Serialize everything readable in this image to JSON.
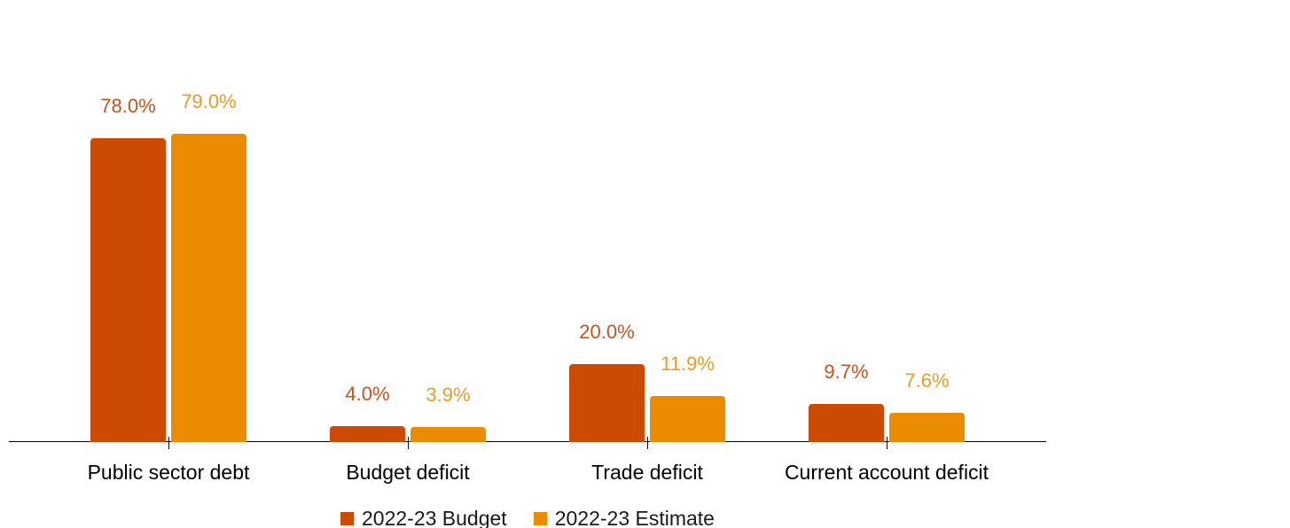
{
  "chart_data": {
    "type": "bar",
    "categories": [
      "Public sector debt",
      "Budget deficit",
      "Trade deficit",
      "Current account deficit"
    ],
    "series": [
      {
        "name": "2022-23 Budget",
        "color": "#CC4A02",
        "label_color": "#C7531E",
        "values": [
          78.0,
          4.0,
          20.0,
          9.7
        ],
        "labels": [
          "78.0%",
          "4.0%",
          "20.0%",
          "9.7%"
        ]
      },
      {
        "name": "2022-23 Estimate",
        "color": "#EB8C00",
        "label_color": "#E89C2A",
        "values": [
          79.0,
          3.9,
          11.9,
          7.6
        ],
        "labels": [
          "79.0%",
          "3.9%",
          "11.9%",
          "7.6%"
        ]
      }
    ],
    "title": "",
    "xlabel": "",
    "ylabel": "",
    "ylim": [
      0,
      100
    ],
    "value_format": "percent",
    "grid": false,
    "legend_position": "bottom",
    "axis_color": "#000000",
    "background": "#ffffff"
  }
}
